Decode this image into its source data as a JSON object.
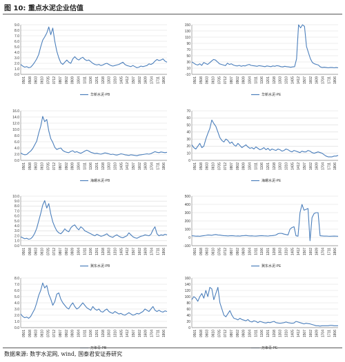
{
  "figure": {
    "title": "图 10:  重点水泥企业估值",
    "source": "数据来源:  数字水泥网,  wind,  国泰君安证券研究"
  },
  "colors": {
    "line": "#4a7ebb",
    "grid": "#d9d9d9",
    "axis": "#888888",
    "accent_tick": "#c0504d"
  },
  "chart_data": [
    {
      "type": "line",
      "legend": "华新水泥-PB",
      "x_labels": [
        "0501",
        "0508",
        "0603",
        "0610",
        "0705",
        "0712",
        "0807",
        "0902",
        "0909",
        "1004",
        "1011",
        "1106",
        "1201",
        "1208",
        "1303",
        "1310",
        "1405",
        "1412",
        "1507",
        "1602",
        "1609",
        "1704",
        "1711",
        "1806"
      ],
      "y_ticks": [
        "0.0",
        "1.0",
        "2.0",
        "3.0",
        "4.0",
        "5.0",
        "6.0",
        "7.0",
        "8.0",
        "9.0"
      ],
      "ylim": [
        0,
        9
      ],
      "values": [
        1.8,
        1.5,
        1.3,
        1.4,
        1.2,
        1.3,
        1.7,
        2.2,
        2.8,
        3.6,
        5.0,
        6.2,
        6.8,
        7.5,
        8.6,
        7.2,
        8.4,
        6.0,
        4.2,
        3.0,
        2.1,
        1.8,
        2.2,
        2.6,
        2.2,
        2.0,
        2.8,
        3.2,
        2.8,
        2.6,
        2.9,
        3.1,
        2.7,
        2.5,
        2.6,
        2.3,
        2.0,
        1.8,
        1.7,
        1.8,
        1.6,
        1.7,
        1.9,
        2.0,
        1.8,
        1.6,
        1.5,
        1.6,
        1.7,
        1.8,
        2.0,
        2.2,
        1.8,
        1.6,
        1.5,
        1.4,
        1.6,
        1.4,
        1.2,
        1.3,
        1.5,
        1.4,
        1.5,
        1.6,
        1.9,
        1.8,
        2.0,
        2.4,
        2.7,
        2.5,
        2.6,
        2.8,
        2.4,
        2.2
      ]
    },
    {
      "type": "line",
      "legend": "华新水泥-PE",
      "x_labels": [
        "0501",
        "0508",
        "0603",
        "0610",
        "0705",
        "0712",
        "0807",
        "0902",
        "0909",
        "1004",
        "1011",
        "1106",
        "1201",
        "1208",
        "1303",
        "1310",
        "1405",
        "1412",
        "1507",
        "1602",
        "1609",
        "1704",
        "1711",
        "1806"
      ],
      "y_ticks": [
        "-10",
        "10",
        "30",
        "50",
        "70",
        "90",
        "110",
        "130",
        "150"
      ],
      "ylim": [
        -10,
        150
      ],
      "values": [
        30,
        26,
        22,
        20,
        24,
        19,
        28,
        25,
        22,
        27,
        33,
        38,
        36,
        30,
        24,
        22,
        20,
        18,
        26,
        22,
        24,
        20,
        18,
        17,
        19,
        16,
        18,
        17,
        20,
        22,
        19,
        18,
        17,
        16,
        18,
        17,
        16,
        15,
        17,
        16,
        15,
        17,
        16,
        18,
        17,
        15,
        14,
        16,
        15,
        14,
        13,
        14,
        15,
        40,
        150,
        140,
        150,
        145,
        80,
        60,
        40,
        28,
        24,
        22,
        20,
        14,
        12,
        13,
        12,
        11,
        12,
        12,
        11,
        12,
        11
      ]
    },
    {
      "type": "line",
      "legend": "海螺水泥-PB",
      "x_labels": [
        "0501",
        "0508",
        "0603",
        "0610",
        "0705",
        "0712",
        "0807",
        "0902",
        "0909",
        "1004",
        "1011",
        "1106",
        "1201",
        "1208",
        "1303",
        "1310",
        "1405",
        "1412",
        "1507",
        "1602",
        "1609",
        "1704",
        "1711",
        "1806"
      ],
      "y_ticks": [
        "0.0",
        "2.0",
        "4.0",
        "6.0",
        "8.0",
        "10.0",
        "12.0",
        "14.0",
        "16.0"
      ],
      "ylim": [
        0,
        16
      ],
      "values": [
        2.4,
        2.0,
        1.8,
        1.9,
        2.5,
        3.0,
        3.8,
        5.0,
        6.2,
        8.8,
        11.0,
        14.2,
        12.5,
        13.2,
        9.5,
        7.0,
        5.8,
        4.2,
        3.5,
        3.8,
        4.0,
        3.2,
        2.8,
        2.6,
        2.5,
        2.9,
        3.1,
        2.6,
        2.8,
        2.5,
        2.3,
        2.6,
        3.0,
        3.3,
        3.0,
        2.6,
        2.4,
        2.2,
        2.3,
        2.1,
        2.0,
        2.2,
        2.4,
        2.3,
        2.1,
        1.9,
        2.0,
        1.8,
        1.7,
        1.9,
        2.1,
        2.0,
        1.8,
        1.7,
        1.6,
        1.8,
        1.7,
        1.6,
        1.5,
        1.7,
        1.8,
        1.9,
        2.0,
        2.1,
        2.0,
        2.2,
        2.5,
        2.8,
        2.6,
        2.5,
        2.7,
        2.6,
        2.5,
        2.6
      ]
    },
    {
      "type": "line",
      "legend": "海螺水泥-PE",
      "x_labels": [
        "0501",
        "0508",
        "0603",
        "0610",
        "0705",
        "0712",
        "0807",
        "0902",
        "0909",
        "1004",
        "1011",
        "1106",
        "1201",
        "1208",
        "1303",
        "1310",
        "1405",
        "1412",
        "1507",
        "1602",
        "1609",
        "1704",
        "1711",
        "1806"
      ],
      "y_ticks": [
        "0",
        "10",
        "20",
        "30",
        "40",
        "50",
        "60",
        "70"
      ],
      "ylim": [
        0,
        70
      ],
      "values": [
        22,
        18,
        16,
        20,
        24,
        18,
        20,
        30,
        38,
        45,
        57,
        52,
        48,
        40,
        32,
        28,
        26,
        30,
        28,
        24,
        26,
        22,
        20,
        24,
        21,
        18,
        20,
        22,
        19,
        17,
        18,
        16,
        19,
        17,
        15,
        16,
        18,
        15,
        17,
        14,
        16,
        15,
        14,
        16,
        15,
        13,
        14,
        16,
        15,
        13,
        12,
        14,
        13,
        12,
        11,
        13,
        12,
        12,
        14,
        13,
        11,
        10,
        11,
        12,
        11,
        10,
        8,
        6,
        5,
        5,
        5,
        6,
        6,
        7
      ]
    },
    {
      "type": "line",
      "legend": "冀东水泥-PB",
      "x_labels": [
        "0501",
        "0508",
        "0603",
        "0610",
        "0705",
        "0712",
        "0807",
        "0902",
        "0909",
        "1004",
        "1011",
        "1106",
        "1201",
        "1208",
        "1303",
        "1310",
        "1405",
        "1412",
        "1507",
        "1602",
        "1609",
        "1704",
        "1711",
        "1806"
      ],
      "y_ticks": [
        "0.0",
        "1.0",
        "2.0",
        "3.0",
        "4.0",
        "5.0",
        "6.0",
        "7.0",
        "8.0",
        "9.0",
        "10.0"
      ],
      "ylim": [
        0,
        10
      ],
      "values": [
        1.8,
        1.6,
        1.4,
        1.5,
        1.3,
        1.4,
        1.8,
        2.5,
        3.5,
        5.0,
        6.5,
        8.2,
        9.1,
        7.6,
        8.5,
        6.4,
        4.8,
        3.8,
        3.0,
        2.6,
        2.4,
        2.8,
        3.4,
        3.0,
        2.8,
        3.6,
        4.0,
        4.2,
        3.6,
        3.2,
        3.8,
        3.5,
        3.0,
        2.8,
        2.6,
        2.4,
        2.2,
        2.0,
        2.3,
        2.1,
        1.9,
        2.0,
        2.2,
        2.4,
        2.0,
        1.8,
        1.7,
        2.0,
        2.2,
        1.9,
        1.7,
        1.6,
        1.8,
        2.0,
        2.6,
        2.2,
        1.8,
        1.6,
        1.5,
        1.7,
        1.9,
        2.0,
        2.2,
        2.1,
        2.0,
        2.3,
        3.2,
        3.8,
        2.4,
        2.0,
        2.2,
        2.1,
        2.3,
        2.2
      ]
    },
    {
      "type": "line",
      "legend": "冀东水泥-PE",
      "x_labels": [
        "0501",
        "0508",
        "0603",
        "0610",
        "0705",
        "0712",
        "0807",
        "0902",
        "0909",
        "1004",
        "1011",
        "1106",
        "1201",
        "1208",
        "1303",
        "1310",
        "1405",
        "1412",
        "1507",
        "1602",
        "1609",
        "1704",
        "1711",
        "1806"
      ],
      "y_ticks": [
        "-100",
        "0",
        "100",
        "200",
        "300",
        "400",
        "500"
      ],
      "ylim": [
        -100,
        500
      ],
      "values": [
        20,
        18,
        15,
        16,
        14,
        18,
        22,
        25,
        30,
        28,
        26,
        32,
        35,
        30,
        28,
        24,
        22,
        20,
        18,
        20,
        22,
        19,
        17,
        18,
        16,
        20,
        22,
        24,
        20,
        18,
        19,
        17,
        16,
        18,
        20,
        22,
        19,
        18,
        17,
        20,
        22,
        24,
        30,
        45,
        50,
        48,
        40,
        35,
        30,
        100,
        120,
        130,
        20,
        15,
        300,
        400,
        330,
        340,
        350,
        -40,
        240,
        290,
        300,
        300,
        20,
        18,
        16,
        17,
        15,
        14,
        15,
        16,
        15,
        14
      ]
    },
    {
      "type": "line",
      "legend": "万年青-PB",
      "x_labels": [
        "0501",
        "0508",
        "0603",
        "0610",
        "0705",
        "0712",
        "0807",
        "0902",
        "0909",
        "1004",
        "1011",
        "1106",
        "1201",
        "1208",
        "1303",
        "1310",
        "1405",
        "1412",
        "1507",
        "1602",
        "1609",
        "1704",
        "1711",
        "1806"
      ],
      "y_ticks": [
        "0.0",
        "1.0",
        "2.0",
        "3.0",
        "4.0",
        "5.0",
        "6.0",
        "7.0",
        "8.0"
      ],
      "ylim": [
        0,
        8
      ],
      "values": [
        2.2,
        1.8,
        1.6,
        1.7,
        1.5,
        1.8,
        2.4,
        3.0,
        4.0,
        5.2,
        6.0,
        7.2,
        6.4,
        6.8,
        5.4,
        4.6,
        3.6,
        4.2,
        5.4,
        5.6,
        4.6,
        4.0,
        3.6,
        3.2,
        3.0,
        3.6,
        4.0,
        3.4,
        3.0,
        3.2,
        3.6,
        4.0,
        3.6,
        3.2,
        3.0,
        2.8,
        3.4,
        3.0,
        2.8,
        3.0,
        2.6,
        2.5,
        2.8,
        3.0,
        2.6,
        2.4,
        2.3,
        2.6,
        2.4,
        2.2,
        2.3,
        2.1,
        2.0,
        2.2,
        2.4,
        2.2,
        2.0,
        2.1,
        2.3,
        2.2,
        2.4,
        2.6,
        3.0,
        2.8,
        2.6,
        3.0,
        3.4,
        2.8,
        2.6,
        2.8,
        2.6,
        2.5,
        2.7,
        2.6
      ]
    },
    {
      "type": "line",
      "legend": "万年青-PE",
      "x_labels": [
        "0501",
        "0508",
        "0603",
        "0610",
        "0705",
        "0712",
        "0807",
        "0902",
        "0909",
        "1004",
        "1011",
        "1106",
        "1201",
        "1208",
        "1303",
        "1310",
        "1405",
        "1412",
        "1507",
        "1602",
        "1609",
        "1704",
        "1711",
        "1806"
      ],
      "y_ticks": [
        "0",
        "20",
        "40",
        "60",
        "80",
        "100",
        "120",
        "140",
        "160"
      ],
      "ylim": [
        0,
        160
      ],
      "values": [
        90,
        100,
        95,
        85,
        100,
        110,
        95,
        120,
        100,
        130,
        125,
        90,
        110,
        130,
        80,
        60,
        40,
        35,
        45,
        55,
        40,
        30,
        28,
        25,
        30,
        26,
        24,
        22,
        26,
        20,
        18,
        22,
        20,
        16,
        20,
        18,
        16,
        15,
        17,
        16,
        18,
        20,
        16,
        15,
        14,
        15,
        16,
        18,
        16,
        15,
        14,
        15,
        20,
        18,
        16,
        14,
        12,
        14,
        13,
        12,
        10,
        8,
        6,
        6,
        5,
        6,
        6,
        6,
        6,
        7,
        7,
        6,
        6,
        6
      ]
    }
  ]
}
